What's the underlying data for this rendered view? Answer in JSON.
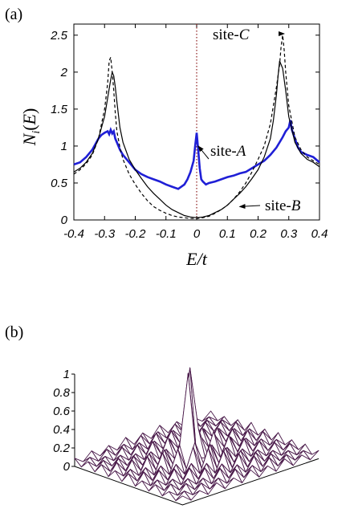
{
  "chart_data": [
    {
      "panel_label": "(a)",
      "type": "line",
      "xlabel": "E/t",
      "ylabel": "N_i(E)",
      "xlim": [
        -0.4,
        0.4
      ],
      "ylim": [
        0,
        2.65
      ],
      "x_ticks": [
        "-0.4",
        "-0.3",
        "-0.2",
        "-0.1",
        "0",
        "0.1",
        "0.2",
        "0.3",
        "0.4"
      ],
      "y_ticks": [
        "0",
        "0.5",
        "1",
        "1.5",
        "2",
        "2.5"
      ],
      "zero_line": {
        "x": 0,
        "style": "dotted",
        "color": "#8b1a1a"
      },
      "series": [
        {
          "name": "site-A",
          "color": "#1f1fd6",
          "style": "thick-solid",
          "x": [
            -0.4,
            -0.38,
            -0.36,
            -0.34,
            -0.32,
            -0.31,
            -0.3,
            -0.29,
            -0.285,
            -0.28,
            -0.275,
            -0.27,
            -0.265,
            -0.26,
            -0.25,
            -0.24,
            -0.22,
            -0.2,
            -0.18,
            -0.16,
            -0.14,
            -0.12,
            -0.1,
            -0.08,
            -0.06,
            -0.04,
            -0.03,
            -0.02,
            -0.01,
            -0.005,
            0,
            0.005,
            0.01,
            0.015,
            0.02,
            0.03,
            0.04,
            0.06,
            0.08,
            0.1,
            0.12,
            0.14,
            0.16,
            0.18,
            0.2,
            0.22,
            0.24,
            0.26,
            0.28,
            0.29,
            0.3,
            0.305,
            0.31,
            0.32,
            0.33,
            0.34,
            0.36,
            0.38,
            0.4
          ],
          "values": [
            0.75,
            0.78,
            0.85,
            0.95,
            1.1,
            1.15,
            1.18,
            1.2,
            1.16,
            1.22,
            1.17,
            1.2,
            1.1,
            1.05,
            0.95,
            0.88,
            0.78,
            0.68,
            0.62,
            0.58,
            0.55,
            0.52,
            0.48,
            0.45,
            0.42,
            0.48,
            0.55,
            0.65,
            0.8,
            1.0,
            1.18,
            0.95,
            0.7,
            0.55,
            0.52,
            0.48,
            0.5,
            0.52,
            0.55,
            0.58,
            0.6,
            0.63,
            0.65,
            0.7,
            0.75,
            0.8,
            0.88,
            0.98,
            1.12,
            1.2,
            1.25,
            1.35,
            1.22,
            1.1,
            0.98,
            0.92,
            0.88,
            0.85,
            0.78
          ]
        },
        {
          "name": "site-B",
          "color": "#000000",
          "style": "solid",
          "x": [
            -0.4,
            -0.38,
            -0.36,
            -0.34,
            -0.32,
            -0.3,
            -0.29,
            -0.28,
            -0.275,
            -0.27,
            -0.265,
            -0.26,
            -0.25,
            -0.24,
            -0.22,
            -0.2,
            -0.18,
            -0.16,
            -0.14,
            -0.12,
            -0.1,
            -0.08,
            -0.06,
            -0.04,
            -0.02,
            0,
            0.02,
            0.04,
            0.06,
            0.08,
            0.1,
            0.12,
            0.14,
            0.16,
            0.18,
            0.2,
            0.22,
            0.24,
            0.25,
            0.26,
            0.265,
            0.27,
            0.28,
            0.29,
            0.3,
            0.32,
            0.34,
            0.36,
            0.38,
            0.4
          ],
          "values": [
            0.65,
            0.7,
            0.78,
            0.9,
            1.1,
            1.4,
            1.65,
            1.9,
            2.0,
            1.95,
            1.8,
            1.6,
            1.25,
            1.05,
            0.82,
            0.68,
            0.56,
            0.45,
            0.36,
            0.28,
            0.2,
            0.14,
            0.1,
            0.06,
            0.04,
            0.03,
            0.04,
            0.06,
            0.1,
            0.14,
            0.2,
            0.28,
            0.36,
            0.45,
            0.56,
            0.68,
            0.85,
            1.1,
            1.35,
            1.7,
            1.95,
            2.15,
            2.05,
            1.75,
            1.4,
            1.05,
            0.9,
            0.82,
            0.78,
            0.72
          ]
        },
        {
          "name": "site-C",
          "color": "#000000",
          "style": "dashed",
          "x": [
            -0.4,
            -0.38,
            -0.36,
            -0.34,
            -0.32,
            -0.3,
            -0.29,
            -0.285,
            -0.28,
            -0.275,
            -0.27,
            -0.265,
            -0.26,
            -0.25,
            -0.24,
            -0.22,
            -0.2,
            -0.18,
            -0.16,
            -0.14,
            -0.12,
            -0.1,
            -0.08,
            -0.06,
            -0.04,
            -0.02,
            0,
            0.02,
            0.04,
            0.06,
            0.08,
            0.1,
            0.12,
            0.14,
            0.16,
            0.18,
            0.2,
            0.22,
            0.24,
            0.26,
            0.27,
            0.275,
            0.28,
            0.285,
            0.29,
            0.3,
            0.32,
            0.34,
            0.36,
            0.38,
            0.4
          ],
          "values": [
            0.62,
            0.68,
            0.76,
            0.88,
            1.1,
            1.5,
            1.85,
            2.15,
            2.2,
            2.0,
            1.75,
            1.45,
            1.2,
            0.98,
            0.82,
            0.62,
            0.48,
            0.36,
            0.26,
            0.18,
            0.13,
            0.09,
            0.06,
            0.04,
            0.03,
            0.02,
            0.02,
            0.03,
            0.05,
            0.09,
            0.14,
            0.2,
            0.28,
            0.38,
            0.5,
            0.65,
            0.82,
            1.0,
            1.3,
            1.8,
            2.1,
            2.35,
            2.5,
            2.3,
            2.0,
            1.55,
            1.12,
            0.95,
            0.85,
            0.8,
            0.75
          ]
        }
      ],
      "annotations": [
        {
          "prefix": "site-",
          "italic": "A",
          "points_to": [
            0.005,
            1.0
          ]
        },
        {
          "prefix": "site-",
          "italic": "B",
          "points_to": [
            0.14,
            0.18
          ]
        },
        {
          "prefix": "site-",
          "italic": "C",
          "points_to": [
            0.285,
            2.52
          ]
        }
      ],
      "grid": false
    },
    {
      "panel_label": "(b)",
      "type": "surface",
      "z_ticks": [
        "0",
        "0.2",
        "0.4",
        "0.6",
        "0.8",
        "1"
      ],
      "zlim": [
        0,
        1
      ],
      "surface_color": "#4a1a4a"
    }
  ]
}
